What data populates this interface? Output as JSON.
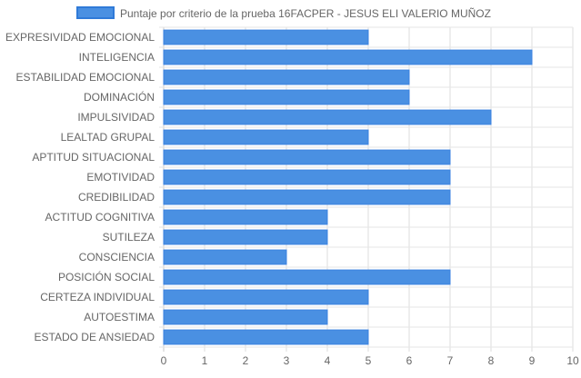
{
  "chart_data": {
    "type": "bar",
    "orientation": "horizontal",
    "categories": [
      "EXPRESIVIDAD EMOCIONAL",
      "INTELIGENCIA",
      "ESTABILIDAD EMOCIONAL",
      "DOMINACIÓN",
      "IMPULSIVIDAD",
      "LEALTAD GRUPAL",
      "APTITUD SITUACIONAL",
      "EMOTIVIDAD",
      "CREDIBILIDAD",
      "ACTITUD COGNITIVA",
      "SUTILEZA",
      "CONSCIENCIA",
      "POSICIÓN SOCIAL",
      "CERTEZA INDIVIDUAL",
      "AUTOESTIMA",
      "ESTADO DE ANSIEDAD"
    ],
    "series": [
      {
        "name": "Puntaje por criterio de la prueba 16FACPER - JESUS ELI VALERIO MUÑOZ",
        "values": [
          5,
          9,
          6,
          6,
          8,
          5,
          7,
          7,
          7,
          4,
          4,
          3,
          7,
          5,
          4,
          5
        ],
        "color": "#4a90e2",
        "border_color": "#3b82e0"
      }
    ],
    "xlim": [
      0,
      10
    ],
    "x_ticks": [
      "0",
      "1",
      "2",
      "3",
      "4",
      "5",
      "6",
      "7",
      "8",
      "9",
      "10"
    ],
    "grid": true,
    "legend_position": "top"
  }
}
